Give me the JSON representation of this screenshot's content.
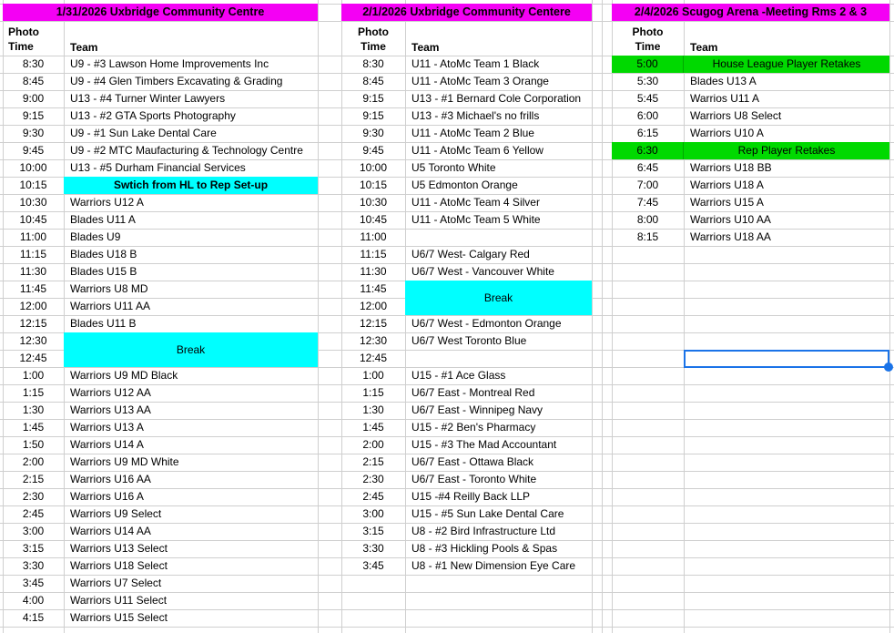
{
  "colors": {
    "header_bg": "#f400f4",
    "highlight_cyan": "#00ffff",
    "highlight_green": "#00d900",
    "selection_blue": "#1a73e8"
  },
  "tables": [
    {
      "title": "1/31/2026 Uxbridge Community Centre",
      "headers": {
        "time": "Photo Time",
        "team": "Team"
      },
      "rows": [
        {
          "time": "8:30",
          "team": "U9 - #3 Lawson Home Improvements Inc"
        },
        {
          "time": "8:45",
          "team": "U9 - #4 Glen Timbers Excavating & Grading"
        },
        {
          "time": "9:00",
          "team": "U13 - #4 Turner Winter Lawyers"
        },
        {
          "time": "9:15",
          "team": "U13 - #2 GTA Sports Photography"
        },
        {
          "time": "9:30",
          "team": "U9 - #1 Sun Lake Dental Care"
        },
        {
          "time": "9:45",
          "team": "U9 - #2 MTC Maufacturing & Technology Centre"
        },
        {
          "time": "10:00",
          "team": "U13 - #5 Durham Financial Services"
        },
        {
          "time": "10:15",
          "team": "Swtich from HL to Rep Set-up",
          "hl": "cyan",
          "bold": true
        },
        {
          "time": "10:30",
          "team": "Warriors U12 A"
        },
        {
          "time": "10:45",
          "team": "Blades U11 A"
        },
        {
          "time": "11:00",
          "team": "Blades U9"
        },
        {
          "time": "11:15",
          "team": "Blades U18 B"
        },
        {
          "time": "11:30",
          "team": "Blades U15 B"
        },
        {
          "time": "11:45",
          "team": "Warriors U8 MD"
        },
        {
          "time": "12:00",
          "team": "Warriors U11 AA"
        },
        {
          "time": "12:15",
          "team": "Blades U11 B"
        },
        {
          "time": "12:30",
          "team": "Break",
          "hl": "cyan",
          "merge": 2
        },
        {
          "time": "12:45",
          "team": ""
        },
        {
          "time": "1:00",
          "team": "Warriors U9 MD Black"
        },
        {
          "time": "1:15",
          "team": "Warriors U12 AA"
        },
        {
          "time": "1:30",
          "team": "Warriors U13 AA"
        },
        {
          "time": "1:45",
          "team": "Warriors U13 A"
        },
        {
          "time": "1:50",
          "team": "Warriors U14 A"
        },
        {
          "time": "2:00",
          "team": "Warriors U9 MD White"
        },
        {
          "time": "2:15",
          "team": "Warriors U16 AA"
        },
        {
          "time": "2:30",
          "team": "Warriors U16 A"
        },
        {
          "time": "2:45",
          "team": "Warriors U9 Select"
        },
        {
          "time": "3:00",
          "team": "Warriors U14 AA"
        },
        {
          "time": "3:15",
          "team": "Warriors U13 Select"
        },
        {
          "time": "3:30",
          "team": "Warriors U18 Select"
        },
        {
          "time": "3:45",
          "team": "Warriors U7 Select"
        },
        {
          "time": "4:00",
          "team": "Warriors U11 Select"
        },
        {
          "time": "4:15",
          "team": "Warriors U15 Select"
        }
      ]
    },
    {
      "title": "2/1/2026  Uxbridge Community Centere",
      "headers": {
        "time": "Photo Time",
        "team": "Team"
      },
      "rows": [
        {
          "time": "8:30",
          "team": "U11 - AtoMc Team 1 Black"
        },
        {
          "time": "8:45",
          "team": "U11 - AtoMc Team 3 Orange"
        },
        {
          "time": "9:15",
          "team": "U13 - #1 Bernard Cole Corporation"
        },
        {
          "time": "9:15",
          "team": "U13 - #3 Michael's no frills"
        },
        {
          "time": "9:30",
          "team": "U11 - AtoMc Team 2 Blue"
        },
        {
          "time": "9:45",
          "team": "U11 - AtoMc Team 6 Yellow"
        },
        {
          "time": "10:00",
          "team": "U5 Toronto White"
        },
        {
          "time": "10:15",
          "team": "U5 Edmonton Orange"
        },
        {
          "time": "10:30",
          "team": "U11 - AtoMc Team 4 Silver"
        },
        {
          "time": "10:45",
          "team": "U11 - AtoMc Team 5 White"
        },
        {
          "time": "11:00",
          "team": ""
        },
        {
          "time": "11:15",
          "team": "U6/7 West- Calgary Red"
        },
        {
          "time": "11:30",
          "team": "U6/7 West - Vancouver White"
        },
        {
          "time": "11:45",
          "team": "Break",
          "hl": "cyan",
          "merge": 2
        },
        {
          "time": "12:00",
          "team": ""
        },
        {
          "time": "12:15",
          "team": "U6/7 West - Edmonton Orange"
        },
        {
          "time": "12:30",
          "team": "U6/7 West Toronto Blue"
        },
        {
          "time": "12:45",
          "team": ""
        },
        {
          "time": "1:00",
          "team": "U15 - #1 Ace Glass"
        },
        {
          "time": "1:15",
          "team": "U6/7 East - Montreal Red"
        },
        {
          "time": "1:30",
          "team": "U6/7 East - Winnipeg Navy"
        },
        {
          "time": "1:45",
          "team": "U15 - #2 Ben's Pharmacy"
        },
        {
          "time": "2:00",
          "team": "U15 - #3 The Mad Accountant"
        },
        {
          "time": "2:15",
          "team": "U6/7 East - Ottawa Black"
        },
        {
          "time": "2:30",
          "team": "U6/7 East - Toronto White"
        },
        {
          "time": "2:45",
          "team": "U15 -#4 Reilly Back LLP"
        },
        {
          "time": "3:00",
          "team": "U15 - #5 Sun Lake Dental Care"
        },
        {
          "time": "3:15",
          "team": "U8 - #2 Bird Infrastructure Ltd"
        },
        {
          "time": "3:30",
          "team": "U8 - #3 Hickling Pools & Spas"
        },
        {
          "time": "3:45",
          "team": "U8 - #1 New Dimension Eye Care"
        }
      ]
    },
    {
      "title": "2/4/2026 Scugog Arena -Meeting Rms 2 & 3",
      "headers": {
        "time": "Photo Time",
        "team": "Team"
      },
      "rows": [
        {
          "time": "5:00",
          "team": "House League Player Retakes",
          "hl": "green"
        },
        {
          "time": "5:30",
          "team": "Blades U13 A"
        },
        {
          "time": "5:45",
          "team": "Warrios U11 A"
        },
        {
          "time": "6:00",
          "team": "Warriors U8 Select"
        },
        {
          "time": "6:15",
          "team": "Warriors U10 A"
        },
        {
          "time": "6:30",
          "team": "Rep Player Retakes",
          "hl": "green"
        },
        {
          "time": "6:45",
          "team": "Warriors U18 BB"
        },
        {
          "time": "7:00",
          "team": "Warriors U18 A"
        },
        {
          "time": "7:45",
          "team": "Warriors U15 A"
        },
        {
          "time": "8:00",
          "team": "Warriors U10 AA"
        },
        {
          "time": "8:15",
          "team": "Warriors U18 AA"
        }
      ]
    }
  ]
}
